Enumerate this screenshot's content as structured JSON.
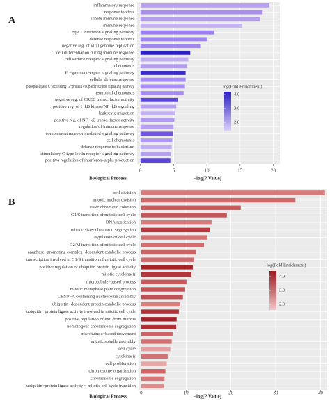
{
  "chart_data": [
    {
      "type": "bar",
      "orientation": "horizontal",
      "panel": "A",
      "categories": [
        "inflammatory response",
        "response to virus",
        "innate immune response",
        "immune response",
        "type I interferon signaling pathway",
        "defense response to virus",
        "negative reg. of viral genome replication",
        "T cell differentiation during immune response",
        "cell surface receptor signaling pathway",
        "chemotaxis",
        "Fc−gamma receptor signaling pathway",
        "cellular defense response",
        "phospholipase C−activating G−protein coupled receptor signaling pathway",
        "neutrophil chemotaxis",
        "negative reg. of CREB transc. factor activity",
        "positive reg. of I−kB kinase/NF−kB signaling",
        "leukocyte migration",
        "positive reg. of NF−kB transc. factor activity",
        "regulation of immune response",
        "complement receptor mediated signaling pathway",
        "cell chemotaxis",
        "defense response to bacterium",
        "stimulatory C-type lectin receptor signaling pathway",
        "positive regulation of interferon−alpha production"
      ],
      "values": [
        19.4,
        18.4,
        18.0,
        15.3,
        11.1,
        10.1,
        9.0,
        7.5,
        7.2,
        7.0,
        6.8,
        6.8,
        6.7,
        6.5,
        5.6,
        5.4,
        5.2,
        5.1,
        5.0,
        4.9,
        4.8,
        4.7,
        4.6,
        4.5
      ],
      "colors": [
        "#b7a0f2",
        "#a98ef0",
        "#b49cf1",
        "#c5b3f4",
        "#9b80ee",
        "#9f85ef",
        "#a188ef",
        "#2b1fc6",
        "#c0acf3",
        "#b39bf1",
        "#3a2bcf",
        "#a78df0",
        "#a990f0",
        "#a58bf0",
        "#5a45d8",
        "#b8a1f2",
        "#c4b1f4",
        "#b29af1",
        "#b8a1f2",
        "#6f57de",
        "#b09af1",
        "#c2aff4",
        "#b6a0f2",
        "#5b46d9"
      ],
      "xlim": [
        -0.5,
        21
      ],
      "xticks": [
        0,
        5,
        10,
        15,
        20
      ],
      "grid": true,
      "xlabel": "−log(P Value)",
      "ylabel": "Biological Process",
      "colorbar": {
        "title": "log(Fold Enrichment)",
        "range": [
          1.4,
          4.2
        ],
        "colors": [
          "#dcd0f9",
          "#2a1ec4"
        ],
        "ticks": [
          {
            "value": 4,
            "label": "4.0"
          },
          {
            "value": 3,
            "label": "3.0"
          },
          {
            "value": 2,
            "label": "2.0"
          }
        ]
      }
    },
    {
      "type": "bar",
      "orientation": "horizontal",
      "panel": "B",
      "categories": [
        "cell division",
        "mitotic nuclear division",
        "sister chromatid cohesion",
        "G1/S transition of mitotic cell cycle",
        "DNA replication",
        "mitotic sister chromatid segregation",
        "regulation of cell cycle",
        "G2/M transition of mitotic cell cycle",
        "anaphase−promoting complex−dependent catabolic process",
        "transcription involved in G1/S transition of mitotic cell cycle",
        "positive regulation of ubiquitin protein ligase activity",
        "mitotic cytokinesis",
        "microtubule−based process",
        "mitotic metaphase plate congression",
        "CENP−A containing nucleosome assembly",
        "ubiquitin−dependent protein catabolic process",
        "ubiquitin−protein ligase activity involved in mitotic cell cycle",
        "positive regulation of exit from mitosis",
        "homologous chromosome segregation",
        "microtubule−based movement",
        "mitotic spindle assembly",
        "cell cycle",
        "cytokinesis",
        "cell proliferation",
        "chromosome organization",
        "chromosome segregation",
        "ubiquitin−protein ligase activity − mitotic cell cycle transition"
      ],
      "values": [
        41,
        34.4,
        22.2,
        19.1,
        15.7,
        15.3,
        14.7,
        14.0,
        12.2,
        11.8,
        11.5,
        11.2,
        10.1,
        9.8,
        9.3,
        8.7,
        8.4,
        7.9,
        7.8,
        7.0,
        6.8,
        6.5,
        5.9,
        5.7,
        5.4,
        5.2,
        5.0
      ],
      "colors": [
        "#d9797a",
        "#cf6a6c",
        "#c85a5c",
        "#c65659",
        "#d8797b",
        "#b8383d",
        "#d57374",
        "#d26e70",
        "#cc6466",
        "#d06a6c",
        "#a92329",
        "#b6353a",
        "#c9595c",
        "#c45458",
        "#c05055",
        "#d9807f",
        "#b2323a",
        "#a4232b",
        "#b23035",
        "#cd6567",
        "#d37172",
        "#e3a0a0",
        "#d37072",
        "#e5a8a7",
        "#cf6668",
        "#d67878",
        "#de8c8c"
      ],
      "xlim": [
        -0.6,
        41.5
      ],
      "xticks": [
        0,
        10,
        20,
        30,
        40
      ],
      "grid": true,
      "xlabel": "−log(P Value)",
      "ylabel": "Biological Process",
      "colorbar": {
        "title": "log(Fold Enrichment)",
        "range": [
          1.6,
          4.4
        ],
        "colors": [
          "#f1c4c4",
          "#9a1c22"
        ],
        "ticks": [
          {
            "value": 4,
            "label": "4.0"
          },
          {
            "value": 3,
            "label": "3.0"
          },
          {
            "value": 2,
            "label": "2.0"
          }
        ]
      }
    }
  ]
}
